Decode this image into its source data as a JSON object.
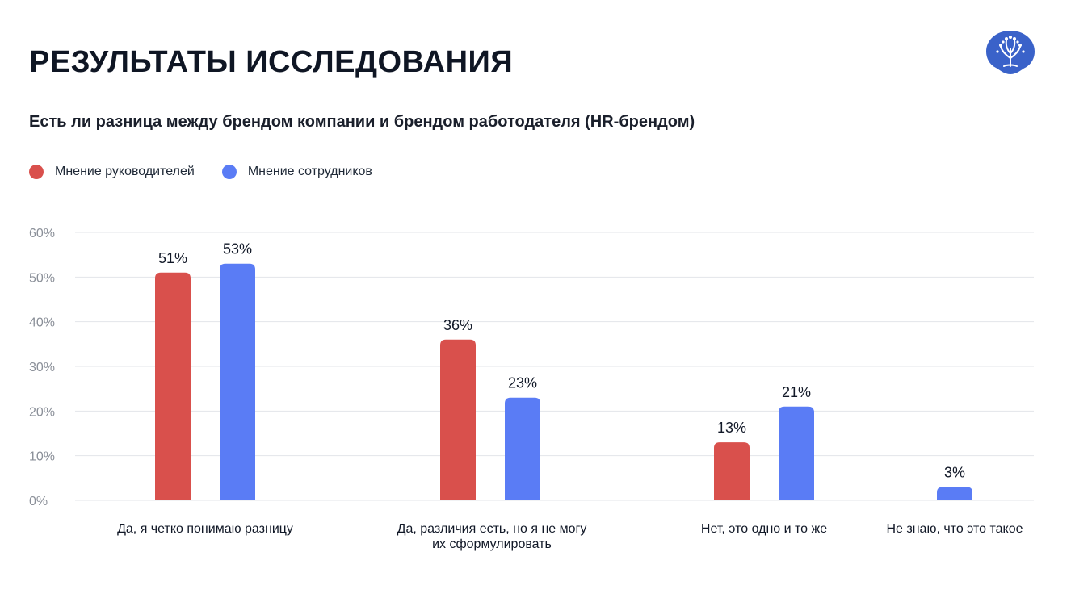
{
  "title": "РЕЗУЛЬТАТЫ ИССЛЕДОВАНИЯ",
  "subtitle": "Есть ли разница между брендом компании и брендом работодателя (HR-брендом)",
  "logo_icon": "tree-logo-icon",
  "colors": {
    "managers": "#d9504c",
    "employees": "#5a7cf5",
    "logo": "#3a62c9",
    "grid": "#e3e5ea"
  },
  "legend": [
    {
      "label": "Мнение руководителей",
      "color": "#d9504c"
    },
    {
      "label": "Мнение сотрудников",
      "color": "#5a7cf5"
    }
  ],
  "chart_data": {
    "type": "bar",
    "categories": [
      "Да, я четко понимаю разницу",
      "Да, различия есть, но я не могу\nих сформулировать",
      "Нет, это одно и то же",
      "Не знаю, что это такое"
    ],
    "series": [
      {
        "name": "Мнение руководителей",
        "values": [
          51,
          36,
          13,
          null
        ],
        "labels": [
          "51%",
          "36%",
          "13%",
          ""
        ]
      },
      {
        "name": "Мнение сотрудников",
        "values": [
          53,
          23,
          21,
          3
        ],
        "labels": [
          "53%",
          "23%",
          "21%",
          "3%"
        ]
      }
    ],
    "ylim": [
      0,
      60
    ],
    "yticks": [
      0,
      10,
      20,
      30,
      40,
      50,
      60
    ],
    "ytick_labels": [
      "0%",
      "10%",
      "20%",
      "30%",
      "40%",
      "50%",
      "60%"
    ],
    "grid": true,
    "legend_position": "top-left"
  }
}
